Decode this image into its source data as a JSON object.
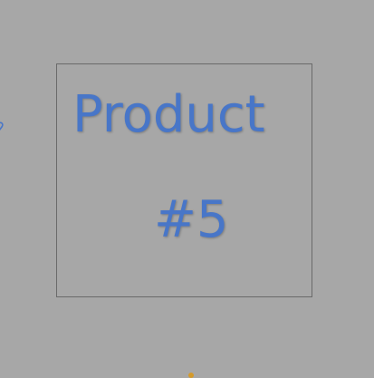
{
  "product": {
    "line1": "Product",
    "line2": "#5"
  },
  "colors": {
    "background": "#a7a7a7",
    "border": "#6a6a6a",
    "text": "#4876c8",
    "edge_glyph": "#4876c8",
    "edge_marker": "#d59a2a"
  },
  "icons": {
    "left_edge": "partial-script-glyph",
    "bottom_edge": "partial-orange-marker"
  }
}
